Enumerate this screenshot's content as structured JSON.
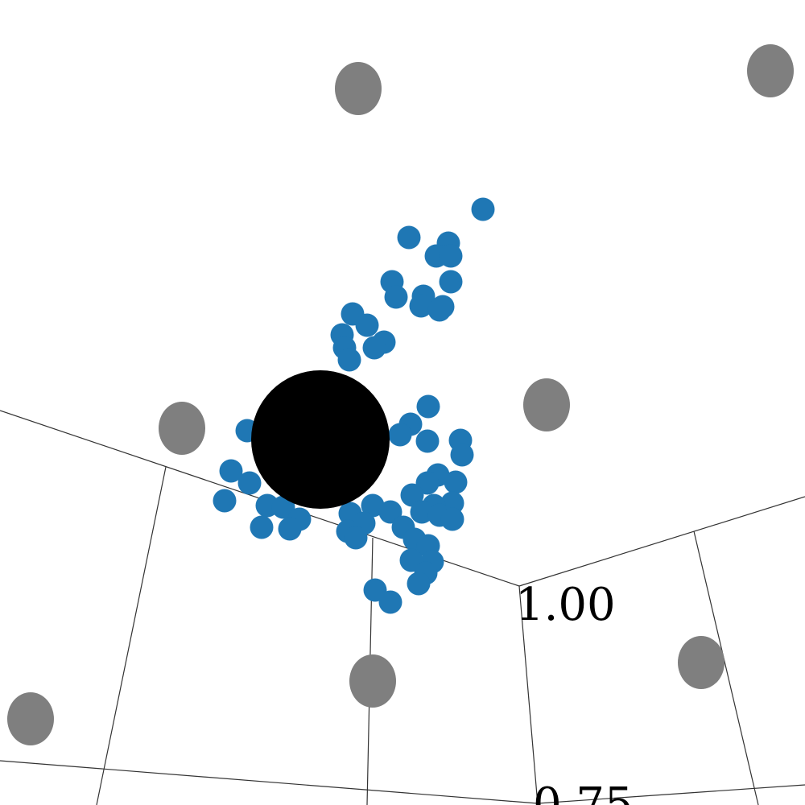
{
  "chart_data": {
    "type": "scatter",
    "projection": "3d",
    "title": "",
    "xlabel": "",
    "ylabel": "",
    "zlabel": "",
    "tick_labels": [
      "1.00",
      "0.75"
    ],
    "grid": true,
    "colors": {
      "background": "#ffffff",
      "points": "#1f77b4",
      "markers": "#7f7f7f",
      "central_sphere": "#000000",
      "grid": "#333333"
    },
    "series": [
      {
        "marker_color": "#1f77b4",
        "points": [
          [
            0.6,
            0.26
          ],
          [
            0.508,
            0.295
          ],
          [
            0.557,
            0.302
          ],
          [
            0.542,
            0.318
          ],
          [
            0.56,
            0.318
          ],
          [
            0.56,
            0.35
          ],
          [
            0.487,
            0.35
          ],
          [
            0.492,
            0.369
          ],
          [
            0.526,
            0.368
          ],
          [
            0.523,
            0.38
          ],
          [
            0.55,
            0.381
          ],
          [
            0.546,
            0.385
          ],
          [
            0.438,
            0.39
          ],
          [
            0.456,
            0.404
          ],
          [
            0.425,
            0.416
          ],
          [
            0.477,
            0.425
          ],
          [
            0.465,
            0.432
          ],
          [
            0.428,
            0.432
          ],
          [
            0.434,
            0.447
          ],
          [
            0.532,
            0.505
          ],
          [
            0.51,
            0.527
          ],
          [
            0.497,
            0.54
          ],
          [
            0.531,
            0.548
          ],
          [
            0.572,
            0.547
          ],
          [
            0.574,
            0.565
          ],
          [
            0.307,
            0.535
          ],
          [
            0.287,
            0.585
          ],
          [
            0.31,
            0.6
          ],
          [
            0.544,
            0.59
          ],
          [
            0.566,
            0.599
          ],
          [
            0.531,
            0.6
          ],
          [
            0.512,
            0.615
          ],
          [
            0.562,
            0.625
          ],
          [
            0.279,
            0.622
          ],
          [
            0.332,
            0.628
          ],
          [
            0.352,
            0.63
          ],
          [
            0.539,
            0.628
          ],
          [
            0.463,
            0.628
          ],
          [
            0.435,
            0.638
          ],
          [
            0.485,
            0.636
          ],
          [
            0.524,
            0.636
          ],
          [
            0.546,
            0.64
          ],
          [
            0.562,
            0.645
          ],
          [
            0.372,
            0.645
          ],
          [
            0.452,
            0.65
          ],
          [
            0.501,
            0.655
          ],
          [
            0.325,
            0.655
          ],
          [
            0.36,
            0.657
          ],
          [
            0.432,
            0.66
          ],
          [
            0.442,
            0.668
          ],
          [
            0.515,
            0.67
          ],
          [
            0.532,
            0.678
          ],
          [
            0.537,
            0.698
          ],
          [
            0.511,
            0.696
          ],
          [
            0.529,
            0.712
          ],
          [
            0.52,
            0.725
          ],
          [
            0.466,
            0.733
          ],
          [
            0.485,
            0.748
          ]
        ]
      }
    ],
    "marker_spheres": [
      [
        0.445,
        0.11
      ],
      [
        0.957,
        0.088
      ],
      [
        0.226,
        0.532
      ],
      [
        0.679,
        0.503
      ],
      [
        0.871,
        0.823
      ],
      [
        0.463,
        0.846
      ],
      [
        0.038,
        0.893
      ]
    ],
    "central_sphere": [
      0.398,
      0.546
    ]
  }
}
